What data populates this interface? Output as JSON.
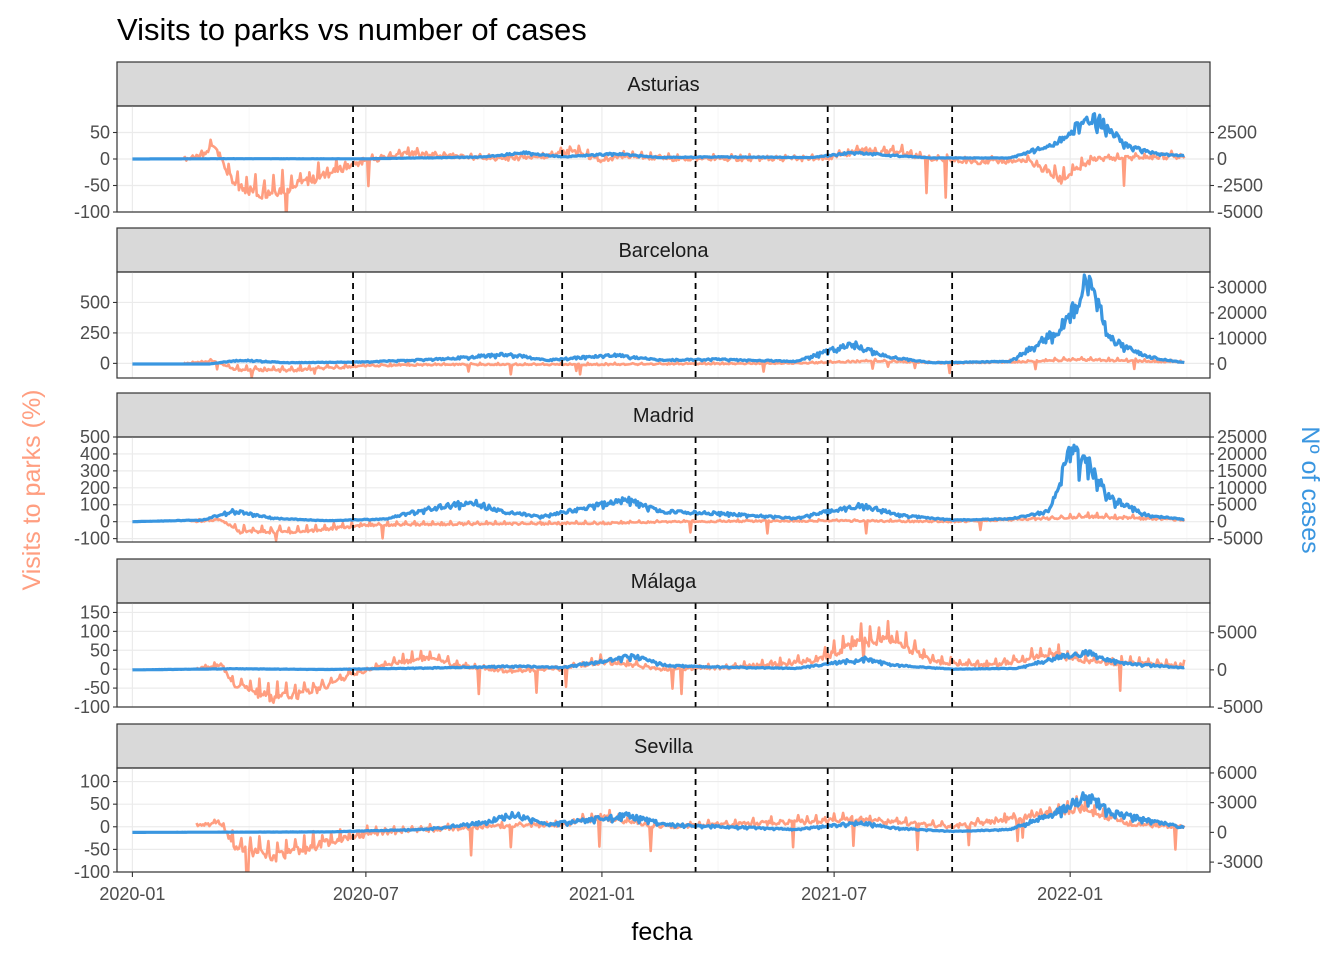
{
  "chart_data": {
    "type": "line",
    "title": "Visits to parks vs number of cases",
    "xlabel": "fecha",
    "ylabel_left": "Visits to parks (%)",
    "ylabel_right": "Nº of cases",
    "x_ticks": [
      "2020-01",
      "2020-07",
      "2021-01",
      "2021-07",
      "2022-01"
    ],
    "x_range": [
      "2019-12-20",
      "2022-04-20"
    ],
    "vlines": [
      "2020-06-21",
      "2020-12-01",
      "2021-03-15",
      "2021-06-26",
      "2021-10-01"
    ],
    "colors": {
      "visits": "#FF9E80",
      "cases": "#3A96E0",
      "strip": "#D9D9D9",
      "grid": "#EBEBEB"
    },
    "series": [
      {
        "name": "Visits to parks (%)",
        "axis": "left",
        "color": "#FF9E80"
      },
      {
        "name": "Nº of cases",
        "axis": "right",
        "color": "#3A96E0"
      }
    ],
    "panels": [
      {
        "label": "Asturias",
        "ylim_left": [
          -100,
          100
        ],
        "ylim_right": [
          -5000,
          5000
        ],
        "left_ticks": [
          50,
          0,
          -50,
          -100
        ],
        "right_ticks": [
          2500,
          0,
          -2500,
          -5000
        ],
        "right_tick_labels": [
          "2500",
          "0",
          "-2500",
          "-5000"
        ],
        "visits": [
          [
            "2020-02-10",
            0
          ],
          [
            "2020-02-25",
            5
          ],
          [
            "2020-03-05",
            28
          ],
          [
            "2020-03-12",
            -10
          ],
          [
            "2020-03-20",
            -50
          ],
          [
            "2020-04-10",
            -65
          ],
          [
            "2020-05-01",
            -55
          ],
          [
            "2020-05-20",
            -40
          ],
          [
            "2020-06-10",
            -20
          ],
          [
            "2020-07-01",
            -5
          ],
          [
            "2020-08-01",
            10
          ],
          [
            "2020-09-01",
            5
          ],
          [
            "2020-10-15",
            0
          ],
          [
            "2020-11-20",
            5
          ],
          [
            "2020-12-10",
            15
          ],
          [
            "2021-01-01",
            -5
          ],
          [
            "2021-01-20",
            5
          ],
          [
            "2021-03-01",
            0
          ],
          [
            "2021-05-01",
            0
          ],
          [
            "2021-06-25",
            0
          ],
          [
            "2021-07-20",
            15
          ],
          [
            "2021-08-20",
            12
          ],
          [
            "2021-09-15",
            0
          ],
          [
            "2021-10-10",
            -5
          ],
          [
            "2021-11-30",
            -5
          ],
          [
            "2021-12-25",
            -40
          ],
          [
            "2022-01-20",
            0
          ],
          [
            "2022-03-31",
            5
          ]
        ],
        "cases": [
          [
            "2020-01-01",
            0
          ],
          [
            "2020-03-15",
            30
          ],
          [
            "2020-07-01",
            20
          ],
          [
            "2020-10-01",
            200
          ],
          [
            "2020-11-01",
            600
          ],
          [
            "2020-12-01",
            200
          ],
          [
            "2021-01-10",
            500
          ],
          [
            "2021-02-15",
            150
          ],
          [
            "2021-04-01",
            200
          ],
          [
            "2021-06-15",
            150
          ],
          [
            "2021-07-15",
            600
          ],
          [
            "2021-08-10",
            400
          ],
          [
            "2021-09-15",
            100
          ],
          [
            "2021-11-15",
            100
          ],
          [
            "2021-12-20",
            1500
          ],
          [
            "2022-01-15",
            3800
          ],
          [
            "2022-01-25",
            3500
          ],
          [
            "2022-02-15",
            1200
          ],
          [
            "2022-03-10",
            500
          ],
          [
            "2022-03-31",
            300
          ]
        ]
      },
      {
        "label": "Barcelona",
        "ylim_left": [
          -120,
          750
        ],
        "ylim_right": [
          -5500,
          36000
        ],
        "left_ticks": [
          500,
          250,
          0
        ],
        "right_ticks": [
          30000,
          20000,
          10000,
          0
        ],
        "right_tick_labels": [
          "30000",
          "20000",
          "10000",
          "0"
        ],
        "visits": [
          [
            "2020-02-10",
            0
          ],
          [
            "2020-03-05",
            20
          ],
          [
            "2020-03-20",
            -50
          ],
          [
            "2020-05-01",
            -60
          ],
          [
            "2020-07-01",
            -20
          ],
          [
            "2020-09-01",
            -10
          ],
          [
            "2021-01-01",
            -10
          ],
          [
            "2021-03-01",
            -5
          ],
          [
            "2021-06-01",
            0
          ],
          [
            "2021-08-01",
            20
          ],
          [
            "2021-10-01",
            0
          ],
          [
            "2021-12-15",
            20
          ],
          [
            "2022-01-01",
            30
          ],
          [
            "2022-03-31",
            10
          ]
        ],
        "cases": [
          [
            "2020-01-01",
            0
          ],
          [
            "2020-03-01",
            0
          ],
          [
            "2020-03-25",
            1500
          ],
          [
            "2020-05-01",
            500
          ],
          [
            "2020-07-01",
            800
          ],
          [
            "2020-09-01",
            2000
          ],
          [
            "2020-10-20",
            3800
          ],
          [
            "2020-11-20",
            1500
          ],
          [
            "2021-01-10",
            3500
          ],
          [
            "2021-02-15",
            1500
          ],
          [
            "2021-04-01",
            1800
          ],
          [
            "2021-06-01",
            1000
          ],
          [
            "2021-07-15",
            8000
          ],
          [
            "2021-08-10",
            3000
          ],
          [
            "2021-09-15",
            500
          ],
          [
            "2021-11-15",
            1000
          ],
          [
            "2021-12-20",
            12000
          ],
          [
            "2022-01-05",
            22000
          ],
          [
            "2022-01-15",
            33000
          ],
          [
            "2022-02-01",
            10000
          ],
          [
            "2022-03-01",
            3000
          ],
          [
            "2022-03-31",
            500
          ]
        ]
      },
      {
        "label": "Madrid",
        "ylim_left": [
          -120,
          500
        ],
        "ylim_right": [
          -6000,
          25000
        ],
        "left_ticks": [
          500,
          400,
          300,
          200,
          100,
          0,
          -100
        ],
        "right_ticks": [
          25000,
          20000,
          15000,
          10000,
          5000,
          0,
          -5000
        ],
        "right_tick_labels": [
          "25000",
          "20000",
          "15000",
          "10000",
          "5000",
          "0",
          "-5000"
        ],
        "visits": [
          [
            "2020-02-15",
            0
          ],
          [
            "2020-03-10",
            10
          ],
          [
            "2020-03-25",
            -60
          ],
          [
            "2020-05-10",
            -60
          ],
          [
            "2020-07-01",
            -20
          ],
          [
            "2020-09-01",
            -15
          ],
          [
            "2021-01-01",
            -10
          ],
          [
            "2021-03-01",
            0
          ],
          [
            "2021-07-01",
            5
          ],
          [
            "2021-10-01",
            0
          ],
          [
            "2021-12-20",
            20
          ],
          [
            "2022-01-10",
            30
          ],
          [
            "2022-03-31",
            10
          ]
        ],
        "cases": [
          [
            "2020-01-01",
            0
          ],
          [
            "2020-02-25",
            500
          ],
          [
            "2020-03-20",
            3200
          ],
          [
            "2020-04-20",
            1000
          ],
          [
            "2020-06-01",
            300
          ],
          [
            "2020-07-15",
            800
          ],
          [
            "2020-08-15",
            3500
          ],
          [
            "2020-09-20",
            6000
          ],
          [
            "2020-10-15",
            3000
          ],
          [
            "2020-11-15",
            1500
          ],
          [
            "2021-01-20",
            6500
          ],
          [
            "2021-02-15",
            3000
          ],
          [
            "2021-04-01",
            2500
          ],
          [
            "2021-06-01",
            1000
          ],
          [
            "2021-07-20",
            5000
          ],
          [
            "2021-08-20",
            2000
          ],
          [
            "2021-10-01",
            500
          ],
          [
            "2021-11-15",
            800
          ],
          [
            "2021-12-15",
            3000
          ],
          [
            "2022-01-01",
            20000
          ],
          [
            "2022-01-15",
            17000
          ],
          [
            "2022-02-01",
            7000
          ],
          [
            "2022-03-01",
            2000
          ],
          [
            "2022-03-31",
            700
          ]
        ]
      },
      {
        "label": "Málaga",
        "ylim_left": [
          -100,
          175
        ],
        "ylim_right": [
          -5000,
          9000
        ],
        "left_ticks": [
          150,
          100,
          50,
          0,
          -50,
          -100
        ],
        "right_ticks": [
          5000,
          0,
          -5000
        ],
        "right_tick_labels": [
          "5000",
          "0",
          "-5000"
        ],
        "visits": [
          [
            "2020-02-20",
            0
          ],
          [
            "2020-03-10",
            10
          ],
          [
            "2020-03-20",
            -40
          ],
          [
            "2020-04-20",
            -80
          ],
          [
            "2020-05-20",
            -60
          ],
          [
            "2020-06-20",
            -15
          ],
          [
            "2020-07-15",
            10
          ],
          [
            "2020-08-15",
            30
          ],
          [
            "2020-09-10",
            10
          ],
          [
            "2020-10-15",
            -5
          ],
          [
            "2020-12-01",
            0
          ],
          [
            "2021-01-01",
            20
          ],
          [
            "2021-02-15",
            0
          ],
          [
            "2021-04-15",
            5
          ],
          [
            "2021-06-15",
            20
          ],
          [
            "2021-07-20",
            70
          ],
          [
            "2021-08-15",
            80
          ],
          [
            "2021-09-15",
            20
          ],
          [
            "2021-11-01",
            10
          ],
          [
            "2021-12-20",
            40
          ],
          [
            "2022-01-10",
            20
          ],
          [
            "2022-03-31",
            10
          ]
        ],
        "cases": [
          [
            "2020-01-01",
            0
          ],
          [
            "2020-03-20",
            150
          ],
          [
            "2020-06-01",
            50
          ],
          [
            "2020-08-15",
            250
          ],
          [
            "2020-10-30",
            500
          ],
          [
            "2020-12-01",
            300
          ],
          [
            "2021-01-25",
            1900
          ],
          [
            "2021-02-20",
            600
          ],
          [
            "2021-04-01",
            400
          ],
          [
            "2021-06-01",
            200
          ],
          [
            "2021-07-25",
            1500
          ],
          [
            "2021-08-20",
            600
          ],
          [
            "2021-10-01",
            100
          ],
          [
            "2021-11-20",
            200
          ],
          [
            "2021-12-25",
            1800
          ],
          [
            "2022-01-15",
            2300
          ],
          [
            "2022-02-10",
            900
          ],
          [
            "2022-03-31",
            300
          ]
        ]
      },
      {
        "label": "Sevilla",
        "ylim_left": [
          -100,
          130
        ],
        "ylim_right": [
          -4000,
          6500
        ],
        "left_ticks": [
          100,
          50,
          0,
          -50,
          -100
        ],
        "right_ticks": [
          6000,
          3000,
          0,
          -3000
        ],
        "right_tick_labels": [
          "6000",
          "3000",
          "0",
          "-3000"
        ],
        "visits": [
          [
            "2020-02-20",
            0
          ],
          [
            "2020-03-10",
            10
          ],
          [
            "2020-03-20",
            -40
          ],
          [
            "2020-04-20",
            -70
          ],
          [
            "2020-05-20",
            -45
          ],
          [
            "2020-06-20",
            -20
          ],
          [
            "2020-08-01",
            -10
          ],
          [
            "2020-10-01",
            0
          ],
          [
            "2020-12-01",
            5
          ],
          [
            "2021-01-01",
            20
          ],
          [
            "2021-02-15",
            0
          ],
          [
            "2021-04-15",
            5
          ],
          [
            "2021-07-15",
            15
          ],
          [
            "2021-10-01",
            0
          ],
          [
            "2021-12-20",
            30
          ],
          [
            "2022-01-10",
            40
          ],
          [
            "2022-02-15",
            5
          ],
          [
            "2022-03-31",
            0
          ]
        ],
        "cases": [
          [
            "2020-01-01",
            0
          ],
          [
            "2020-06-01",
            50
          ],
          [
            "2020-08-15",
            300
          ],
          [
            "2020-10-01",
            1000
          ],
          [
            "2020-10-25",
            1800
          ],
          [
            "2020-11-20",
            800
          ],
          [
            "2021-01-20",
            1700
          ],
          [
            "2021-02-20",
            800
          ],
          [
            "2021-04-01",
            600
          ],
          [
            "2021-06-01",
            300
          ],
          [
            "2021-07-20",
            1000
          ],
          [
            "2021-08-20",
            400
          ],
          [
            "2021-10-01",
            100
          ],
          [
            "2021-11-15",
            300
          ],
          [
            "2021-12-25",
            2200
          ],
          [
            "2022-01-15",
            3800
          ],
          [
            "2022-02-01",
            2000
          ],
          [
            "2022-03-31",
            500
          ]
        ]
      }
    ]
  }
}
